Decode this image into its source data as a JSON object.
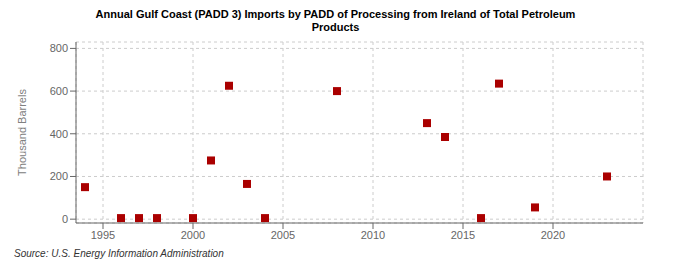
{
  "chart_data": {
    "type": "scatter",
    "title": "Annual Gulf Coast (PADD 3) Imports by PADD of Processing from Ireland of Total Petroleum\nProducts",
    "y_label": "Thousand Barrels",
    "annotations": [
      "Source: U.S. Energy Information Administration"
    ],
    "x": [
      1994,
      1996,
      1997,
      1998,
      2000,
      2001,
      2002,
      2003,
      2004,
      2008,
      2013,
      2014,
      2016,
      2017,
      2019,
      2023
    ],
    "values": [
      150,
      5,
      5,
      5,
      5,
      275,
      625,
      165,
      5,
      600,
      450,
      385,
      5,
      635,
      55,
      200
    ],
    "color": "#aa0000",
    "marker": "square",
    "xlim": [
      1993.5,
      2025
    ],
    "ylim": [
      -18,
      830
    ],
    "xticks": [
      1995,
      2000,
      2005,
      2010,
      2015,
      2020
    ],
    "yticks": [
      0,
      200,
      400,
      600,
      800
    ],
    "grid": true
  }
}
